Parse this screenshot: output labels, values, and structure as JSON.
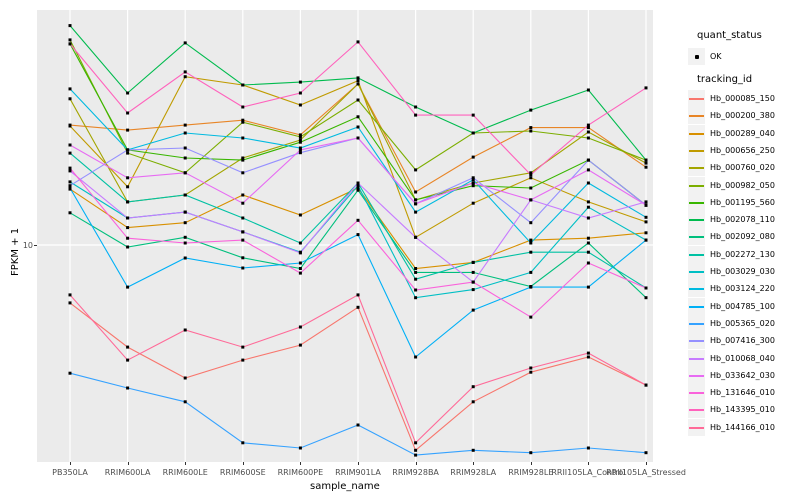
{
  "chart_data": {
    "type": "line",
    "xlabel": "sample_name",
    "ylabel": "FPKM + 1",
    "y_scale": "log10",
    "ylim": [
      1.1,
      110
    ],
    "y_ticks": [
      {
        "label": "10",
        "value": 10
      }
    ],
    "grid": "major",
    "panel_bg": "#EBEBEB",
    "gridline_color": "#FFFFFF",
    "point_color": "#000000",
    "legend_position": "right",
    "categories": [
      "PB350LA",
      "RRIM600LA",
      "RRIM600LE",
      "RRIM600SE",
      "RRIM600PE",
      "RRIM901LA",
      "RRIM928BA",
      "RRIM928LA",
      "RRIM928LE",
      "RRII105LA_Control",
      "RRII105LA_Stressed"
    ],
    "series": [
      {
        "name": "Hb_000085_150",
        "color": "#F8766D",
        "values": [
          5.6,
          3.6,
          2.64,
          3.16,
          3.67,
          5.36,
          1.28,
          2.08,
          2.8,
          3.26,
          2.46
        ]
      },
      {
        "name": "Hb_000200_380",
        "color": "#E88526",
        "values": [
          33.2,
          31.6,
          33.2,
          34.9,
          30.1,
          50.1,
          17,
          24.1,
          32.4,
          32.4,
          21.8
        ]
      },
      {
        "name": "Hb_000289_040",
        "color": "#D89000",
        "values": [
          17.5,
          11.9,
          12.5,
          16.5,
          13.5,
          17.7,
          7.9,
          8.4,
          10.5,
          10.7,
          11.3
        ]
      },
      {
        "name": "Hb_000656_250",
        "color": "#C09B00",
        "values": [
          32.9,
          17.9,
          53.9,
          49.6,
          40.6,
          51.8,
          10.8,
          15.2,
          19.6,
          15.4,
          12.6
        ]
      },
      {
        "name": "Hb_000760_020",
        "color": "#A3A500",
        "values": [
          43.2,
          15.4,
          16.5,
          23.9,
          28.6,
          50.1,
          15.7,
          18.6,
          20.6,
          31,
          22.7
        ]
      },
      {
        "name": "Hb_000982_050",
        "color": "#7CAE00",
        "values": [
          77.9,
          25.1,
          20.6,
          34.2,
          29.5,
          42.7,
          21.2,
          30.7,
          31.3,
          29.2,
          23.4
        ]
      },
      {
        "name": "Hb_001195_560",
        "color": "#39B600",
        "values": [
          74.9,
          25.9,
          23.9,
          23.4,
          28,
          36.1,
          15.7,
          18.1,
          17.7,
          23.4,
          14.9
        ]
      },
      {
        "name": "Hb_002078_110",
        "color": "#00BB4E",
        "values": [
          89.9,
          45.8,
          75.6,
          49.6,
          51.1,
          53.3,
          39.8,
          30.7,
          38.6,
          47.2,
          23.4
        ]
      },
      {
        "name": "Hb_002092_080",
        "color": "#00BF7D",
        "values": [
          13.8,
          9.8,
          10.8,
          8.8,
          7.9,
          17.3,
          7.6,
          7.6,
          6.6,
          10.2,
          5.9
        ]
      },
      {
        "name": "Hb_002272_130",
        "color": "#00C1A3",
        "values": [
          25.1,
          15.4,
          16.5,
          13.1,
          10.2,
          18.6,
          7.1,
          8.4,
          9.3,
          9.3,
          6.5
        ]
      },
      {
        "name": "Hb_003029_030",
        "color": "#00BFC4",
        "values": [
          18.8,
          13.1,
          13.9,
          11.4,
          9.3,
          18.1,
          5.9,
          6.4,
          7.6,
          14.6,
          10.5
        ]
      },
      {
        "name": "Hb_003124_220",
        "color": "#00BAE0",
        "values": [
          47.7,
          25.9,
          30.7,
          29.2,
          26.4,
          32.6,
          13.9,
          19.2,
          10.2,
          18.6,
          13.2
        ]
      },
      {
        "name": "Hb_004785_100",
        "color": "#00B0F6",
        "values": [
          17.7,
          6.56,
          8.78,
          7.94,
          8.35,
          11.1,
          3.26,
          5.21,
          6.56,
          6.56,
          10.5
        ]
      },
      {
        "name": "Hb_005365_020",
        "color": "#35A2FF",
        "values": [
          2.77,
          2.39,
          2.08,
          1.38,
          1.31,
          1.65,
          1.22,
          1.28,
          1.25,
          1.31,
          1.25
        ]
      },
      {
        "name": "Hb_007416_300",
        "color": "#9590FF",
        "values": [
          18.1,
          25.9,
          26.4,
          20.6,
          25.2,
          29.2,
          15.1,
          19.6,
          12.5,
          23.4,
          14.9
        ]
      },
      {
        "name": "Hb_010068_040",
        "color": "#C77CFF",
        "values": [
          21,
          13.1,
          13.9,
          11.4,
          9.24,
          18.6,
          10.8,
          6.9,
          15.7,
          13.1,
          15.4
        ]
      },
      {
        "name": "Hb_033642_030",
        "color": "#E76BF3",
        "values": [
          27.2,
          19.6,
          20.6,
          15.2,
          25.9,
          29.2,
          15.1,
          18.6,
          15.7,
          21.2,
          14.9
        ]
      },
      {
        "name": "Hb_131646_010",
        "color": "#FA62DB",
        "values": [
          21.6,
          10.7,
          10.2,
          10.5,
          7.55,
          12.8,
          6.37,
          6.9,
          4.86,
          8.35,
          6.5
        ]
      },
      {
        "name": "Hb_143395_010",
        "color": "#FF62BC",
        "values": [
          74.9,
          37.5,
          56.6,
          39.8,
          45.8,
          76.4,
          36.7,
          36.7,
          20.2,
          33.2,
          48.2
        ]
      },
      {
        "name": "Hb_144166_010",
        "color": "#FF6A98",
        "values": [
          6.07,
          3.16,
          4.27,
          3.6,
          4.4,
          6.07,
          1.38,
          2.42,
          2.92,
          3.39,
          2.46
        ]
      }
    ]
  },
  "legend": {
    "quant_status_title": "quant_status",
    "quant_status_items": [
      {
        "label": "OK",
        "marker": "point"
      }
    ],
    "tracking_title": "tracking_id"
  }
}
